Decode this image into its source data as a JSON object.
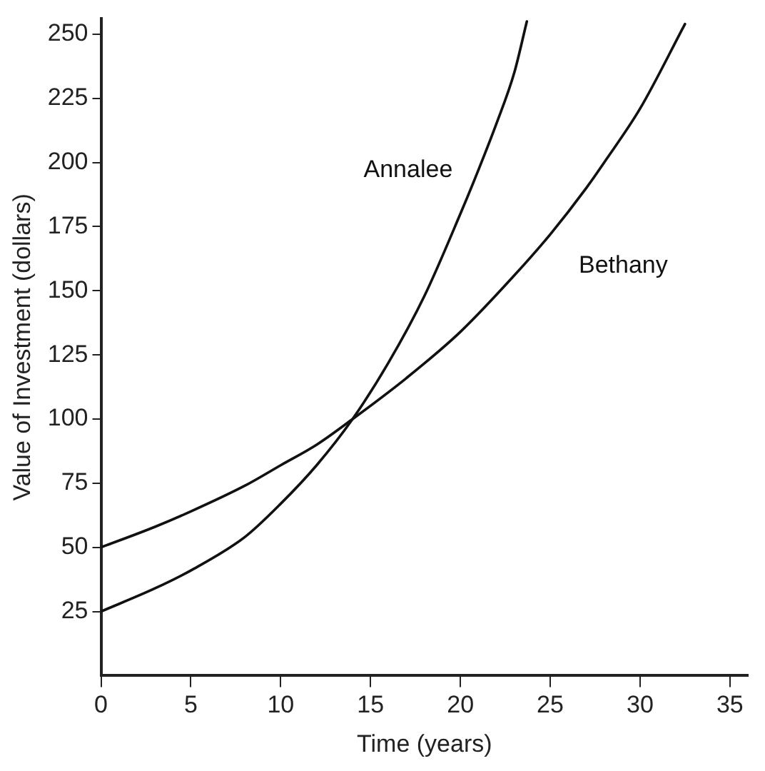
{
  "chart_data": {
    "type": "line",
    "xlabel": "Time (years)",
    "ylabel": "Value of Investment (dollars)",
    "xlim": [
      0,
      36
    ],
    "xticks": [
      0,
      5,
      10,
      15,
      20,
      25,
      30,
      35
    ],
    "ylim": [
      0,
      256
    ],
    "yticks": [
      25,
      50,
      75,
      100,
      125,
      150,
      175,
      200,
      225,
      250
    ],
    "grid": false,
    "legend": false,
    "marker": "none",
    "line_style": "solid",
    "series": [
      {
        "name": "Annalee",
        "color": "#111111",
        "x": [
          0,
          3,
          5,
          8,
          10,
          12,
          14,
          16,
          18,
          20,
          21,
          22,
          23,
          23.7
        ],
        "values": [
          25,
          34,
          41,
          54,
          67,
          82,
          100,
          122,
          148,
          180,
          197,
          215,
          235,
          255
        ]
      },
      {
        "name": "Bethany",
        "color": "#111111",
        "x": [
          0,
          3,
          5,
          8,
          10,
          12,
          14,
          17,
          20,
          23,
          25,
          27,
          28,
          30,
          32.5
        ],
        "values": [
          50,
          58,
          64,
          74,
          82,
          90,
          100,
          116,
          134,
          156,
          172,
          190,
          200,
          221,
          254
        ]
      }
    ]
  }
}
